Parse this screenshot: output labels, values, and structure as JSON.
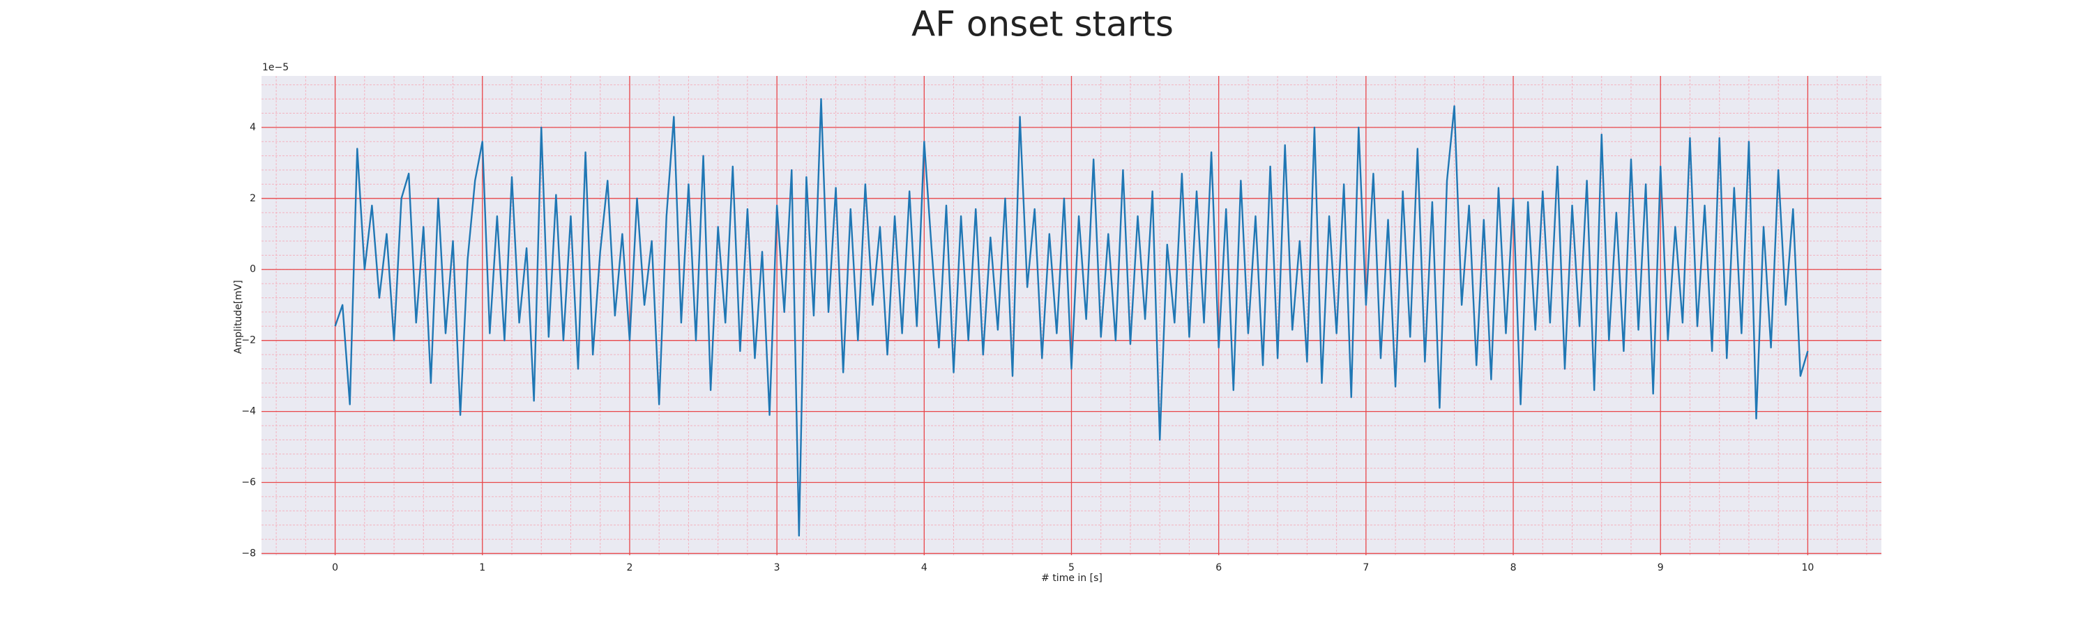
{
  "chart_data": {
    "type": "line",
    "title": "AF onset starts",
    "x_label": "# time in [s]",
    "y_label": "Amplitude[mV]",
    "y_offset_label": "1e−5",
    "xlim": [
      -0.5,
      10.5
    ],
    "ylim": [
      -8.05,
      5.45
    ],
    "xticks": [
      0,
      1,
      2,
      3,
      4,
      5,
      6,
      7,
      8,
      9,
      10
    ],
    "yticks": [
      {
        "value": -8,
        "label": "−8"
      },
      {
        "value": -6,
        "label": "−6"
      },
      {
        "value": -4,
        "label": "−4"
      },
      {
        "value": -2,
        "label": "−2"
      },
      0,
      2,
      4
    ],
    "grid": true,
    "minor_grid": true,
    "grid_color": "#e8474a",
    "minor_grid_color": "#f3b3c0",
    "background": "#eaeaf2",
    "series": [
      {
        "color": "#1f77b4",
        "x": [
          0,
          0.05,
          0.1,
          0.15,
          0.2,
          0.25,
          0.3,
          0.35,
          0.4,
          0.45,
          0.5,
          0.55,
          0.6,
          0.65,
          0.7,
          0.75,
          0.8,
          0.85,
          0.9,
          0.95,
          1,
          1.05,
          1.1,
          1.15,
          1.2,
          1.25,
          1.3,
          1.35,
          1.4,
          1.45,
          1.5,
          1.55,
          1.6,
          1.65,
          1.7,
          1.75,
          1.8,
          1.85,
          1.9,
          1.95,
          2,
          2.05,
          2.1,
          2.15,
          2.2,
          2.25,
          2.3,
          2.35,
          2.4,
          2.45,
          2.5,
          2.55,
          2.6,
          2.65,
          2.7,
          2.75,
          2.8,
          2.85,
          2.9,
          2.95,
          3,
          3.05,
          3.1,
          3.15,
          3.2,
          3.25,
          3.3,
          3.35,
          3.4,
          3.45,
          3.5,
          3.55,
          3.6,
          3.65,
          3.7,
          3.75,
          3.8,
          3.85,
          3.9,
          3.95,
          4,
          4.05,
          4.1,
          4.15,
          4.2,
          4.25,
          4.3,
          4.35,
          4.4,
          4.45,
          4.5,
          4.55,
          4.6,
          4.65,
          4.7,
          4.75,
          4.8,
          4.85,
          4.9,
          4.95,
          5,
          5.05,
          5.1,
          5.15,
          5.2,
          5.25,
          5.3,
          5.35,
          5.4,
          5.45,
          5.5,
          5.55,
          5.6,
          5.65,
          5.7,
          5.75,
          5.8,
          5.85,
          5.9,
          5.95,
          6,
          6.05,
          6.1,
          6.15,
          6.2,
          6.25,
          6.3,
          6.35,
          6.4,
          6.45,
          6.5,
          6.55,
          6.6,
          6.65,
          6.7,
          6.75,
          6.8,
          6.85,
          6.9,
          6.95,
          7,
          7.05,
          7.1,
          7.15,
          7.2,
          7.25,
          7.3,
          7.35,
          7.4,
          7.45,
          7.5,
          7.55,
          7.6,
          7.65,
          7.7,
          7.75,
          7.8,
          7.85,
          7.9,
          7.95,
          8,
          8.05,
          8.1,
          8.15,
          8.2,
          8.25,
          8.3,
          8.35,
          8.4,
          8.45,
          8.5,
          8.55,
          8.6,
          8.65,
          8.7,
          8.75,
          8.8,
          8.85,
          8.9,
          8.95,
          9,
          9.05,
          9.1,
          9.15,
          9.2,
          9.25,
          9.3,
          9.35,
          9.4,
          9.45,
          9.5,
          9.55,
          9.6,
          9.65,
          9.7,
          9.75,
          9.8,
          9.85,
          9.9,
          9.95,
          10
        ],
        "values": [
          -1.6,
          -1.0,
          -3.8,
          3.4,
          0.0,
          1.8,
          -0.8,
          1.0,
          -2.0,
          2.0,
          2.7,
          -1.5,
          1.2,
          -3.2,
          2.0,
          -1.8,
          0.8,
          -4.1,
          0.3,
          2.5,
          3.6,
          -1.8,
          1.5,
          -2.0,
          2.6,
          -1.5,
          0.6,
          -3.7,
          4.0,
          -1.9,
          2.1,
          -2.0,
          1.5,
          -2.8,
          3.3,
          -2.4,
          0.5,
          2.5,
          -1.3,
          1.0,
          -2.0,
          2.0,
          -1.0,
          0.8,
          -3.8,
          1.5,
          4.3,
          -1.5,
          2.4,
          -2.0,
          3.2,
          -3.4,
          1.2,
          -1.5,
          2.9,
          -2.3,
          1.7,
          -2.5,
          0.5,
          -4.1,
          1.8,
          -1.2,
          2.8,
          -7.5,
          2.6,
          -1.3,
          4.8,
          -1.2,
          2.3,
          -2.9,
          1.7,
          -2.0,
          2.4,
          -1.0,
          1.2,
          -2.4,
          1.5,
          -1.8,
          2.2,
          -1.6,
          3.6,
          0.6,
          -2.2,
          1.8,
          -2.9,
          1.5,
          -2.0,
          1.7,
          -2.4,
          0.9,
          -1.7,
          2.0,
          -3.0,
          4.3,
          -0.5,
          1.7,
          -2.5,
          1.0,
          -1.8,
          2.0,
          -2.8,
          1.5,
          -1.4,
          3.1,
          -1.9,
          1.0,
          -2.0,
          2.8,
          -2.1,
          1.5,
          -1.4,
          2.2,
          -4.8,
          0.7,
          -1.5,
          2.7,
          -1.9,
          2.2,
          -1.5,
          3.3,
          -2.2,
          1.7,
          -3.4,
          2.5,
          -1.8,
          1.5,
          -2.7,
          2.9,
          -2.5,
          3.5,
          -1.7,
          0.8,
          -2.6,
          4.0,
          -3.2,
          1.5,
          -1.8,
          2.4,
          -3.6,
          4.0,
          -1.0,
          2.7,
          -2.5,
          1.4,
          -3.3,
          2.2,
          -1.9,
          3.4,
          -2.6,
          1.9,
          -3.9,
          2.5,
          4.6,
          -1.0,
          1.8,
          -2.7,
          1.4,
          -3.1,
          2.3,
          -1.8,
          2.0,
          -3.8,
          1.9,
          -1.7,
          2.2,
          -1.5,
          2.9,
          -2.8,
          1.8,
          -1.6,
          2.5,
          -3.4,
          3.8,
          -2.0,
          1.6,
          -2.3,
          3.1,
          -1.7,
          2.4,
          -3.5,
          2.9,
          -2.0,
          1.2,
          -1.5,
          3.7,
          -1.6,
          1.8,
          -2.3,
          3.7,
          -2.5,
          2.3,
          -1.8,
          3.6,
          -4.2,
          1.2,
          -2.2,
          2.8,
          -1.0,
          1.7,
          -3.0,
          -2.3
        ]
      }
    ]
  }
}
